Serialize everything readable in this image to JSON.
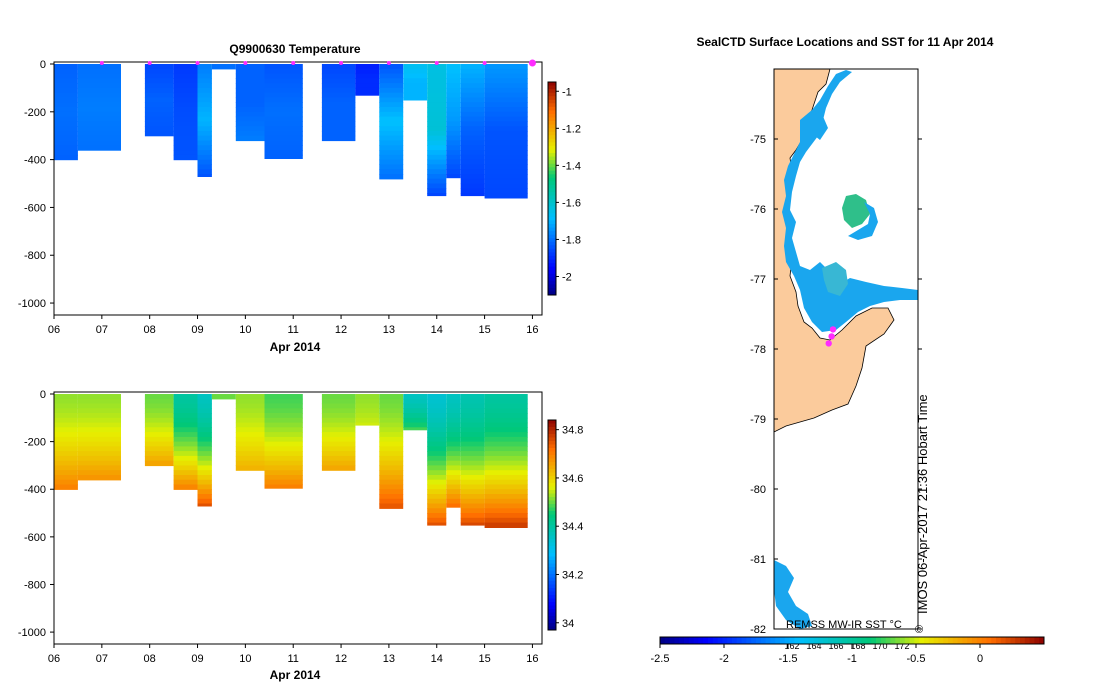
{
  "chart_data": [
    {
      "type": "heatmap",
      "title": "Q9900630  Temperature",
      "xlabel": "Apr 2014",
      "ylabel": "",
      "x_ticks": [
        "06",
        "07",
        "08",
        "09",
        "10",
        "11",
        "12",
        "13",
        "14",
        "15",
        "16"
      ],
      "y_ticks": [
        "0",
        "-200",
        "-400",
        "-600",
        "-800",
        "-1000"
      ],
      "ylim": [
        -1050,
        0
      ],
      "colorbar_ticks": [
        "-1",
        "-1.2",
        "-1.4",
        "-1.6",
        "-1.8",
        "-2"
      ],
      "colorbar_range": [
        -2.1,
        -0.95
      ],
      "profile_markers_days": [
        7,
        8,
        9,
        10,
        11,
        12,
        13,
        14,
        15,
        16
      ],
      "columns": [
        {
          "start": 6.0,
          "end": 6.5,
          "max_depth": 400,
          "surface": -1.82,
          "mid": -1.8,
          "deep": -1.82
        },
        {
          "start": 6.5,
          "end": 7.4,
          "max_depth": 365,
          "surface": -1.8,
          "mid": -1.78,
          "deep": -1.8
        },
        {
          "start": 7.9,
          "end": 8.5,
          "max_depth": 300,
          "surface": -1.86,
          "mid": -1.82,
          "deep": -1.84
        },
        {
          "start": 8.5,
          "end": 9.0,
          "max_depth": 400,
          "surface": -1.88,
          "mid": -1.85,
          "deep": -1.84
        },
        {
          "start": 9.0,
          "end": 9.3,
          "max_depth": 470,
          "surface": -1.78,
          "mid": -1.7,
          "deep": -1.84
        },
        {
          "start": 9.3,
          "end": 9.8,
          "max_depth": 20,
          "surface": -1.8,
          "mid": -1.8,
          "deep": -1.8
        },
        {
          "start": 9.8,
          "end": 10.4,
          "max_depth": 320,
          "surface": -1.82,
          "mid": -1.82,
          "deep": -1.78
        },
        {
          "start": 10.4,
          "end": 11.2,
          "max_depth": 395,
          "surface": -1.84,
          "mid": -1.8,
          "deep": -1.82
        },
        {
          "start": 11.6,
          "end": 12.3,
          "max_depth": 325,
          "surface": -1.86,
          "mid": -1.82,
          "deep": -1.82
        },
        {
          "start": 12.3,
          "end": 12.8,
          "max_depth": 130,
          "surface": -1.92,
          "mid": -1.9,
          "deep": -1.9
        },
        {
          "start": 12.8,
          "end": 13.3,
          "max_depth": 480,
          "surface": -1.84,
          "mid": -1.68,
          "deep": -1.8
        },
        {
          "start": 13.3,
          "end": 13.8,
          "max_depth": 150,
          "surface": -1.66,
          "mid": -1.7,
          "deep": -1.7
        },
        {
          "start": 13.8,
          "end": 14.2,
          "max_depth": 550,
          "surface": -1.64,
          "mid": -1.62,
          "deep": -1.86
        },
        {
          "start": 14.2,
          "end": 14.5,
          "max_depth": 475,
          "surface": -1.68,
          "mid": -1.74,
          "deep": -1.86
        },
        {
          "start": 14.5,
          "end": 15.0,
          "max_depth": 550,
          "surface": -1.7,
          "mid": -1.82,
          "deep": -1.88
        },
        {
          "start": 15.0,
          "end": 15.9,
          "max_depth": 560,
          "surface": -1.74,
          "mid": -1.84,
          "deep": -1.86
        }
      ]
    },
    {
      "type": "heatmap",
      "title": "",
      "xlabel": "Apr 2014",
      "ylabel": "",
      "x_ticks": [
        "06",
        "07",
        "08",
        "09",
        "10",
        "11",
        "12",
        "13",
        "14",
        "15",
        "16"
      ],
      "y_ticks": [
        "0",
        "-200",
        "-400",
        "-600",
        "-800",
        "-1000"
      ],
      "ylim": [
        -1050,
        0
      ],
      "colorbar_ticks": [
        "34.8",
        "34.6",
        "34.4",
        "34.2",
        "34"
      ],
      "colorbar_range": [
        33.97,
        34.84
      ],
      "columns": [
        {
          "start": 6.0,
          "end": 6.5,
          "max_depth": 400,
          "surface": 34.52,
          "deep": 34.7
        },
        {
          "start": 6.5,
          "end": 7.4,
          "max_depth": 365,
          "surface": 34.52,
          "deep": 34.68
        },
        {
          "start": 7.9,
          "end": 8.5,
          "max_depth": 300,
          "surface": 34.5,
          "deep": 34.66
        },
        {
          "start": 8.5,
          "end": 9.0,
          "max_depth": 400,
          "surface": 34.4,
          "deep": 34.7
        },
        {
          "start": 9.0,
          "end": 9.3,
          "max_depth": 470,
          "surface": 34.36,
          "deep": 34.75
        },
        {
          "start": 9.3,
          "end": 9.8,
          "max_depth": 20,
          "surface": 34.5,
          "deep": 34.5
        },
        {
          "start": 9.8,
          "end": 10.4,
          "max_depth": 320,
          "surface": 34.52,
          "deep": 34.64
        },
        {
          "start": 10.4,
          "end": 11.2,
          "max_depth": 395,
          "surface": 34.48,
          "deep": 34.7
        },
        {
          "start": 11.6,
          "end": 12.3,
          "max_depth": 325,
          "surface": 34.5,
          "deep": 34.66
        },
        {
          "start": 12.3,
          "end": 12.8,
          "max_depth": 130,
          "surface": 34.52,
          "deep": 34.55
        },
        {
          "start": 12.8,
          "end": 13.3,
          "max_depth": 480,
          "surface": 34.5,
          "deep": 34.75
        },
        {
          "start": 13.3,
          "end": 13.8,
          "max_depth": 150,
          "surface": 34.36,
          "deep": 34.48
        },
        {
          "start": 13.8,
          "end": 14.2,
          "max_depth": 550,
          "surface": 34.34,
          "deep": 34.75
        },
        {
          "start": 14.2,
          "end": 14.5,
          "max_depth": 475,
          "surface": 34.36,
          "deep": 34.72
        },
        {
          "start": 14.5,
          "end": 15.0,
          "max_depth": 550,
          "surface": 34.38,
          "deep": 34.76
        },
        {
          "start": 15.0,
          "end": 15.9,
          "max_depth": 560,
          "surface": 34.4,
          "deep": 34.78
        }
      ]
    },
    {
      "type": "map",
      "title": "SealCTD Surface Locations and SST for 11 Apr 2014",
      "lat_ticks": [
        "-75",
        "-76",
        "-77",
        "-78",
        "-79",
        "-80",
        "-81",
        "-82"
      ],
      "lat_range": [
        -82,
        -74
      ],
      "colorbar_ticks": [
        "-2.5",
        "-2",
        "-1.5",
        "-1",
        "-0.5",
        "0"
      ],
      "colorbar_range": [
        -2.5,
        0.5
      ],
      "lon_ticks": [
        "162",
        "164",
        "166",
        "168",
        "170",
        "172"
      ],
      "sst_label": "REMSS MW-IR SST °C",
      "credit": "IMOS 06-Apr-2017 21:36 Hobart Time",
      "credit_symbol": "©",
      "seal_positions": [
        {
          "lon": 168.2,
          "lat": -77.72
        },
        {
          "lon": 168.0,
          "lat": -77.82
        },
        {
          "lon": 167.6,
          "lat": -77.92
        }
      ]
    }
  ]
}
